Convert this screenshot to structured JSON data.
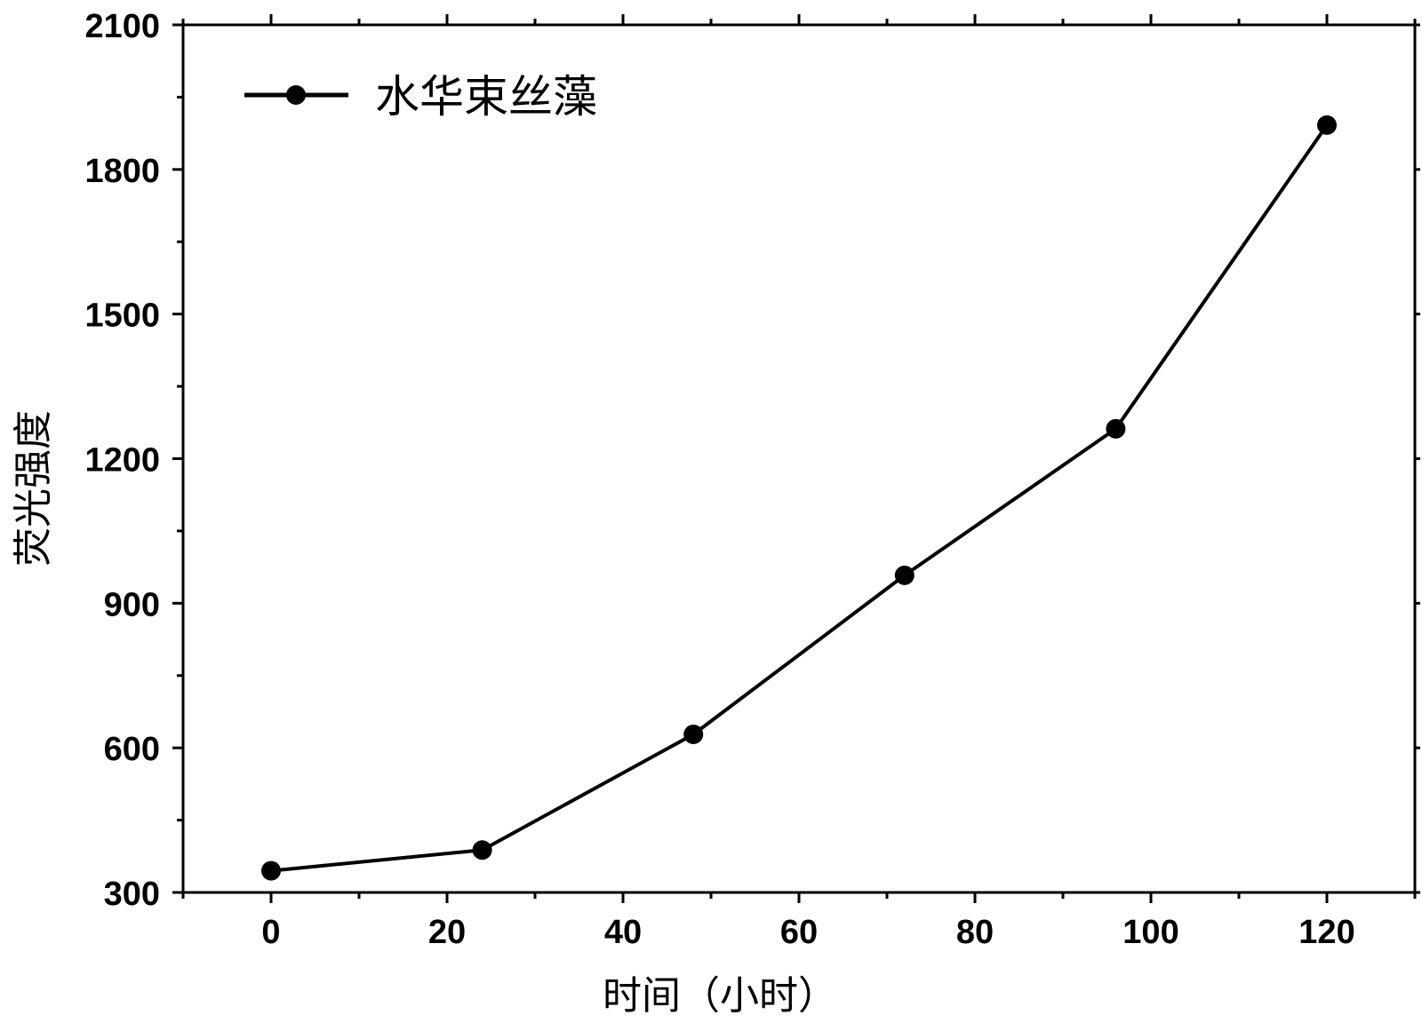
{
  "chart_data": {
    "type": "line",
    "title": "",
    "xlabel": "时间（小时）",
    "ylabel": "荧光强度",
    "xlim": [
      -10,
      130
    ],
    "ylim": [
      300,
      2100
    ],
    "x_ticks": [
      0,
      20,
      40,
      60,
      80,
      100,
      120
    ],
    "x_tick_labels": [
      "0",
      "20",
      "40",
      "60",
      "80",
      "100",
      "120"
    ],
    "x_minor_step": 10,
    "y_ticks": [
      300,
      600,
      900,
      1200,
      1500,
      1800,
      2100
    ],
    "y_tick_labels": [
      "300",
      "600",
      "900",
      "1200",
      "1500",
      "1800",
      "2100"
    ],
    "y_minor_step": 150,
    "grid": false,
    "legend_position": "top-left",
    "series": [
      {
        "name": "水华束丝藻",
        "color": "#000000",
        "marker": "circle",
        "x": [
          0,
          24,
          48,
          72,
          96,
          120
        ],
        "y": [
          345,
          388,
          628,
          958,
          1262,
          1892
        ]
      }
    ]
  }
}
